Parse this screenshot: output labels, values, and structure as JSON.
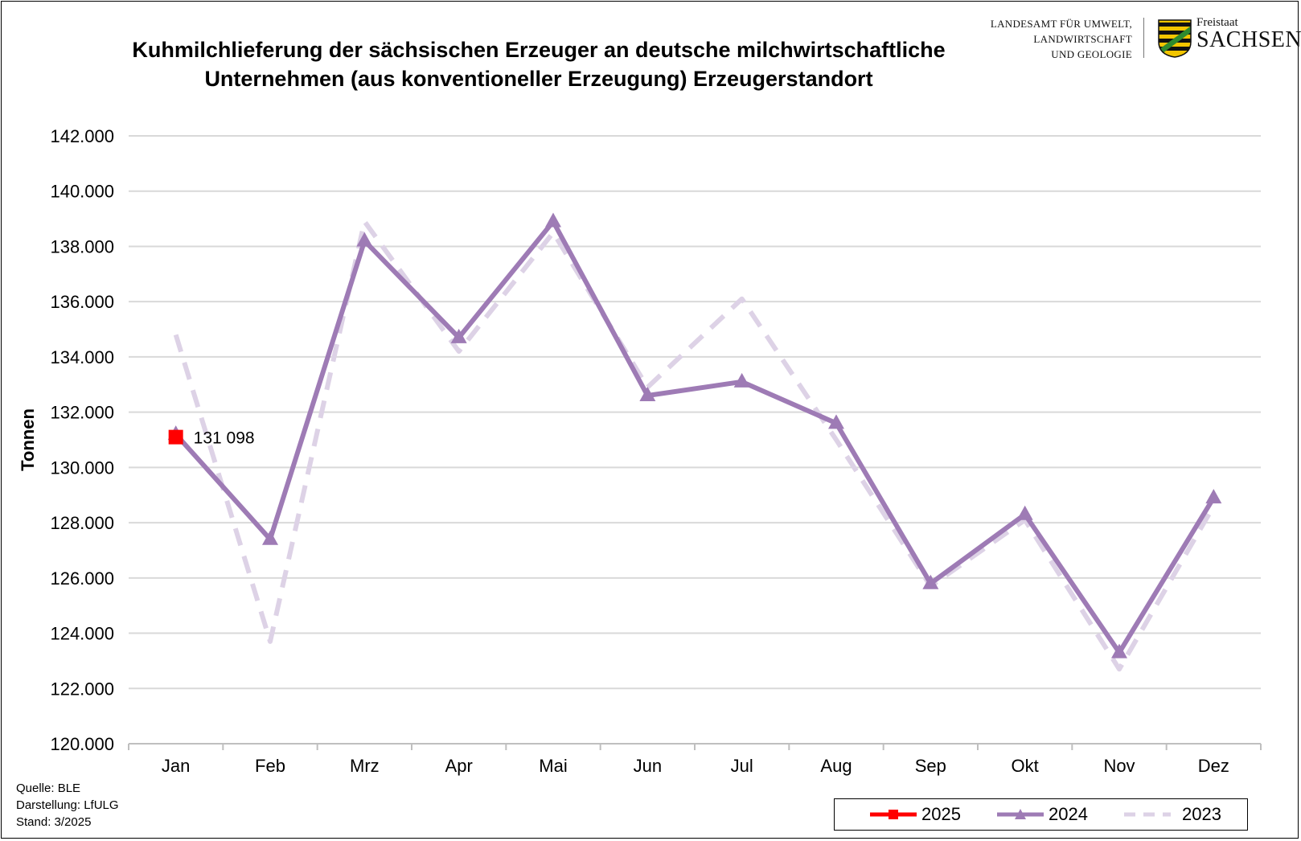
{
  "header": {
    "title_line1": "Kuhmilchlieferung der sächsischen Erzeuger an deutsche milchwirtschaftliche",
    "title_line2": "Unternehmen (aus konventioneller Erzeugung) Erzeugerstandort",
    "logo_line1": "LANDESAMT FÜR UMWELT,",
    "logo_line2": "LANDWIRTSCHAFT",
    "logo_line3": "UND GEOLOGIE",
    "brand_small": "Freistaat",
    "brand_big": "SACHSEN"
  },
  "footnote": {
    "line1": "Quelle: BLE",
    "line2": "Darstellung: LfULG",
    "line3": "Stand: 3/2025"
  },
  "chart_data": {
    "type": "line",
    "title": "Kuhmilchlieferung der sächsischen Erzeuger an deutsche milchwirtschaftliche Unternehmen (aus konventioneller Erzeugung) Erzeugerstandort",
    "ylabel": "Tonnen",
    "xlabel": "",
    "categories": [
      "Jan",
      "Feb",
      "Mrz",
      "Apr",
      "Mai",
      "Jun",
      "Jul",
      "Aug",
      "Sep",
      "Okt",
      "Nov",
      "Dez"
    ],
    "ylim": [
      120000,
      142000
    ],
    "yticks": [
      120000,
      122000,
      124000,
      126000,
      128000,
      130000,
      132000,
      134000,
      136000,
      138000,
      140000,
      142000
    ],
    "ytick_labels": [
      "120.000",
      "122.000",
      "124.000",
      "126.000",
      "128.000",
      "130.000",
      "132.000",
      "134.000",
      "136.000",
      "138.000",
      "140.000",
      "142.000"
    ],
    "grid": true,
    "legend_position": "bottom-right",
    "series": [
      {
        "name": "2025",
        "color": "#ff0000",
        "marker": "square",
        "style": "solid",
        "values": [
          131098,
          null,
          null,
          null,
          null,
          null,
          null,
          null,
          null,
          null,
          null,
          null
        ]
      },
      {
        "name": "2024",
        "color": "#9e7bb5",
        "marker": "triangle",
        "style": "solid",
        "values": [
          131200,
          127400,
          138200,
          134700,
          138900,
          132600,
          133100,
          131600,
          125800,
          128300,
          123300,
          128900
        ]
      },
      {
        "name": "2023",
        "color": "#ddd2e6",
        "marker": "none",
        "style": "dashed",
        "values": [
          134800,
          123700,
          138900,
          134200,
          138500,
          132900,
          136100,
          131000,
          125700,
          128100,
          122700,
          128600
        ]
      }
    ],
    "annotations": [
      {
        "series": "2025",
        "category": "Jan",
        "text": "131 098"
      }
    ]
  }
}
